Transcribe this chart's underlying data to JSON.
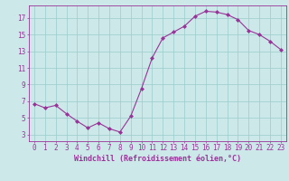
{
  "x": [
    0,
    1,
    2,
    3,
    4,
    5,
    6,
    7,
    8,
    9,
    10,
    11,
    12,
    13,
    14,
    15,
    16,
    17,
    18,
    19,
    20,
    21,
    22,
    23
  ],
  "y": [
    6.7,
    6.2,
    6.5,
    5.5,
    4.6,
    3.8,
    4.4,
    3.7,
    3.3,
    5.2,
    8.5,
    12.2,
    14.6,
    15.3,
    16.0,
    17.2,
    17.8,
    17.7,
    17.4,
    16.8,
    15.5,
    15.0,
    14.2,
    13.2
  ],
  "line_color": "#993399",
  "marker": "D",
  "marker_size": 2.0,
  "bg_color": "#cce8e8",
  "grid_color": "#99cccc",
  "xlabel": "Windchill (Refroidissement éolien,°C)",
  "xlabel_fontsize": 6.0,
  "ylabel_ticks": [
    3,
    5,
    7,
    9,
    11,
    13,
    15,
    17
  ],
  "xtick_labels": [
    "0",
    "1",
    "2",
    "3",
    "4",
    "5",
    "6",
    "7",
    "8",
    "9",
    "10",
    "11",
    "12",
    "13",
    "14",
    "15",
    "16",
    "17",
    "18",
    "19",
    "20",
    "21",
    "22",
    "23"
  ],
  "ylim": [
    2.2,
    18.5
  ],
  "xlim": [
    -0.5,
    23.5
  ],
  "tick_color": "#993399",
  "tick_fontsize": 5.5,
  "spine_color": "#993399"
}
